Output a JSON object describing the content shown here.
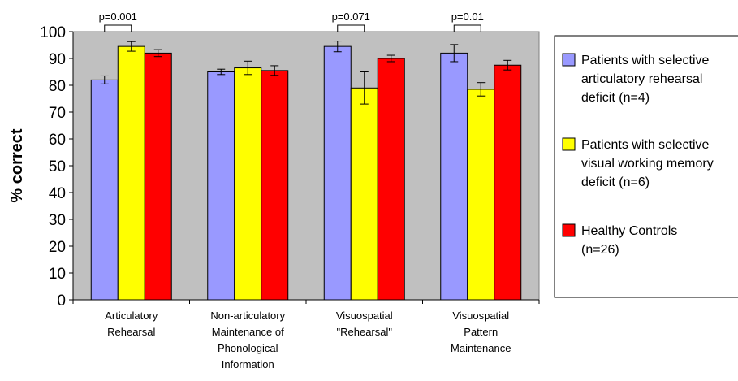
{
  "chart_data": {
    "type": "bar",
    "ylabel": "% correct",
    "ylim": [
      0,
      100
    ],
    "yticks": [
      0,
      10,
      20,
      30,
      40,
      50,
      60,
      70,
      80,
      90,
      100
    ],
    "grid": false,
    "categories": [
      [
        "Articulatory",
        "Rehearsal"
      ],
      [
        "Non-articulatory",
        "Maintenance of",
        "Phonological",
        "Information"
      ],
      [
        "Visuospatial",
        "\"Rehearsal\""
      ],
      [
        "Visuospatial",
        "Pattern",
        "Maintenance"
      ]
    ],
    "series": [
      {
        "name": [
          "Patients with selective",
          "articulatory rehearsal",
          "deficit (n=4)"
        ],
        "color": "#9999FF",
        "values": [
          82,
          85,
          94.5,
          92
        ],
        "errors": [
          1.5,
          1,
          2,
          3.2
        ]
      },
      {
        "name": [
          "Patients with selective",
          "visual working memory",
          "deficit (n=6)"
        ],
        "color": "#FFFF00",
        "values": [
          94.5,
          86.5,
          79,
          78.5
        ],
        "errors": [
          1.8,
          2.5,
          6,
          2.5
        ]
      },
      {
        "name": [
          "Healthy Controls",
          "(n=26)"
        ],
        "color": "#FF0000",
        "values": [
          92,
          85.5,
          90,
          87.5
        ],
        "errors": [
          1.3,
          1.8,
          1.2,
          1.8
        ]
      }
    ],
    "annotations": [
      {
        "text": "p=0.001",
        "category": 0,
        "from_series": 0,
        "to_series": 1
      },
      {
        "text": "p=0.071",
        "category": 2,
        "from_series": 0,
        "to_series": 1
      },
      {
        "text": "p=0.01",
        "category": 3,
        "from_series": 0,
        "to_series": 1
      }
    ],
    "legend_position": "right",
    "plot_background": "#C0C0C0"
  }
}
